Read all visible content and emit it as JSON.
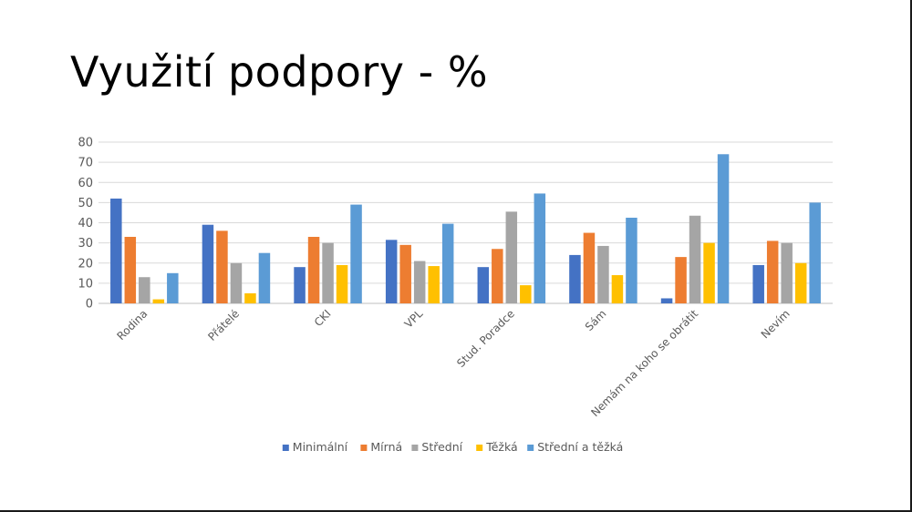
{
  "slide": {
    "title": "Využití podpory - %"
  },
  "chart_data": {
    "type": "bar",
    "title": "",
    "xlabel": "",
    "ylabel": "",
    "ylim": [
      0,
      80
    ],
    "ytick_step": 10,
    "yticks": [
      "0",
      "10",
      "20",
      "30",
      "40",
      "50",
      "60",
      "70",
      "80"
    ],
    "grid": true,
    "legend_position": "bottom",
    "categories": [
      "Rodina",
      "Přátelé",
      "CKI",
      "VPL",
      "Stud. Poradce",
      "Sám",
      "Nemám na koho se obrátit",
      "Nevím"
    ],
    "series": [
      {
        "name": "Minimální",
        "color": "#4472C4",
        "values": [
          52,
          39,
          18,
          31.5,
          18,
          24,
          2.5,
          19
        ]
      },
      {
        "name": "Mírná",
        "color": "#ED7D31",
        "values": [
          33,
          36,
          33,
          29,
          27,
          35,
          23,
          31
        ]
      },
      {
        "name": "Střední",
        "color": "#A5A5A5",
        "values": [
          13,
          20,
          30,
          21,
          45.5,
          28.5,
          43.5,
          30
        ]
      },
      {
        "name": "Těžká",
        "color": "#FFC000",
        "values": [
          2,
          5,
          19,
          18.5,
          9,
          14,
          30,
          20
        ]
      },
      {
        "name": "Střední a těžká",
        "color": "#5B9BD5",
        "values": [
          15,
          25,
          49,
          39.5,
          54.5,
          42.5,
          74,
          50
        ]
      }
    ]
  }
}
